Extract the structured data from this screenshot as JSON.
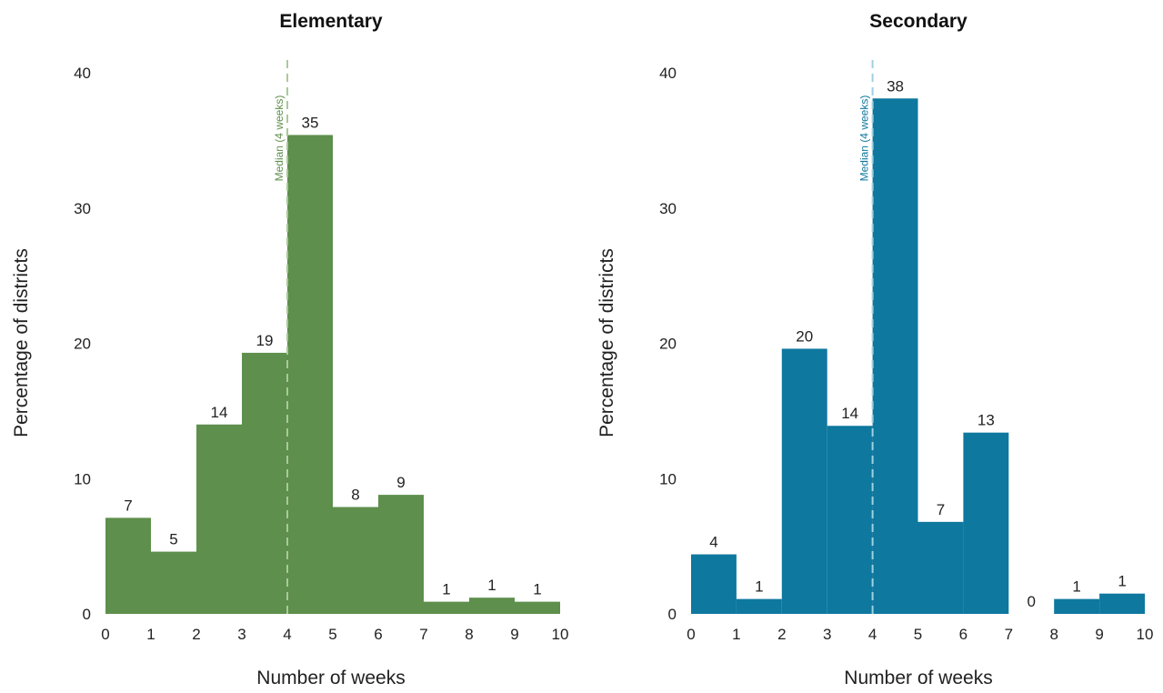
{
  "chart_data": [
    {
      "type": "bar",
      "title": "Elementary",
      "xlabel": "Number of weeks",
      "ylabel": "Percentage of districts",
      "bins": [
        [
          0,
          1
        ],
        [
          1,
          2
        ],
        [
          2,
          3
        ],
        [
          3,
          4
        ],
        [
          4,
          5
        ],
        [
          5,
          6
        ],
        [
          6,
          7
        ],
        [
          7,
          8
        ],
        [
          8,
          9
        ],
        [
          9,
          10
        ]
      ],
      "values": [
        7.1,
        4.6,
        14,
        19.3,
        35.4,
        7.9,
        8.8,
        0.9,
        1.2,
        0.9
      ],
      "labels": [
        "7",
        "5",
        "14",
        "19",
        "35",
        "8",
        "9",
        "1",
        "1",
        "1"
      ],
      "x_ticks": [
        "0",
        "1",
        "2",
        "3",
        "4",
        "5",
        "6",
        "7",
        "8",
        "9",
        "10"
      ],
      "y_ticks": [
        "0",
        "10",
        "20",
        "30",
        "40"
      ],
      "xlim": [
        0,
        10
      ],
      "ylim": [
        0,
        40
      ],
      "median": 4,
      "median_label": "Median (4 weeks)",
      "color": "#5e8f4c",
      "median_color": "#5e8f4c",
      "median_line_color": "#a9c99a"
    },
    {
      "type": "bar",
      "title": "Secondary",
      "xlabel": "Number of weeks",
      "ylabel": "Percentage of districts",
      "bins": [
        [
          0,
          1
        ],
        [
          1,
          2
        ],
        [
          2,
          3
        ],
        [
          3,
          4
        ],
        [
          4,
          5
        ],
        [
          5,
          6
        ],
        [
          6,
          7
        ],
        [
          7,
          8
        ],
        [
          8,
          9
        ],
        [
          9,
          10
        ]
      ],
      "values": [
        4.4,
        1.1,
        19.6,
        13.9,
        38.1,
        6.8,
        13.4,
        0,
        1.1,
        1.5
      ],
      "labels": [
        "4",
        "1",
        "20",
        "14",
        "38",
        "7",
        "13",
        "0",
        "1",
        "1"
      ],
      "x_ticks": [
        "0",
        "1",
        "2",
        "3",
        "4",
        "5",
        "6",
        "7",
        "8",
        "9",
        "10"
      ],
      "y_ticks": [
        "0",
        "10",
        "20",
        "30",
        "40"
      ],
      "xlim": [
        0,
        10
      ],
      "ylim": [
        0,
        40
      ],
      "median": 4,
      "median_label": "Median (4 weeks)",
      "color": "#0e789e",
      "median_color": "#0e789e",
      "median_line_color": "#9fd0e0"
    }
  ]
}
